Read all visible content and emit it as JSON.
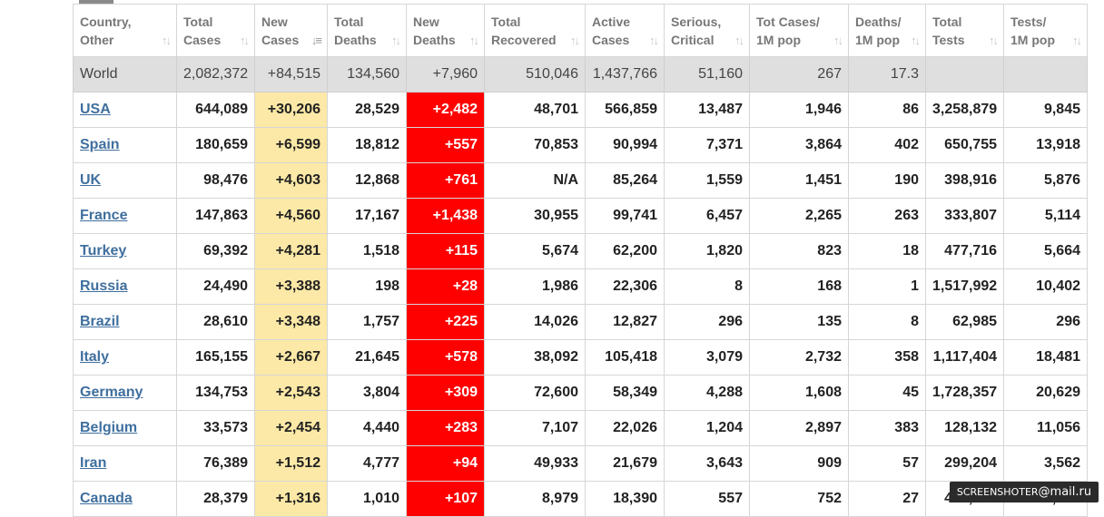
{
  "columns": [
    {
      "key": "country",
      "label": "Country,\nOther"
    },
    {
      "key": "total_cases",
      "label": "Total\nCases"
    },
    {
      "key": "new_cases",
      "label": "New\nCases",
      "sorted": true
    },
    {
      "key": "total_deaths",
      "label": "Total\nDeaths"
    },
    {
      "key": "new_deaths",
      "label": "New\nDeaths"
    },
    {
      "key": "total_recovered",
      "label": "Total\nRecovered"
    },
    {
      "key": "active_cases",
      "label": "Active\nCases"
    },
    {
      "key": "serious_critical",
      "label": "Serious,\nCritical"
    },
    {
      "key": "tot_cases_1m",
      "label": "Tot Cases/\n1M pop"
    },
    {
      "key": "deaths_1m",
      "label": "Deaths/\n1M pop"
    },
    {
      "key": "total_tests",
      "label": "Total\nTests"
    },
    {
      "key": "tests_1m",
      "label": "Tests/\n1M pop"
    }
  ],
  "world": [
    "World",
    "2,082,372",
    "+84,515",
    "134,560",
    "+7,960",
    "510,046",
    "1,437,766",
    "51,160",
    "267",
    "17.3",
    "",
    ""
  ],
  "rows": [
    [
      "USA",
      "644,089",
      "+30,206",
      "28,529",
      "+2,482",
      "48,701",
      "566,859",
      "13,487",
      "1,946",
      "86",
      "3,258,879",
      "9,845"
    ],
    [
      "Spain",
      "180,659",
      "+6,599",
      "18,812",
      "+557",
      "70,853",
      "90,994",
      "7,371",
      "3,864",
      "402",
      "650,755",
      "13,918"
    ],
    [
      "UK",
      "98,476",
      "+4,603",
      "12,868",
      "+761",
      "N/A",
      "85,264",
      "1,559",
      "1,451",
      "190",
      "398,916",
      "5,876"
    ],
    [
      "France",
      "147,863",
      "+4,560",
      "17,167",
      "+1,438",
      "30,955",
      "99,741",
      "6,457",
      "2,265",
      "263",
      "333,807",
      "5,114"
    ],
    [
      "Turkey",
      "69,392",
      "+4,281",
      "1,518",
      "+115",
      "5,674",
      "62,200",
      "1,820",
      "823",
      "18",
      "477,716",
      "5,664"
    ],
    [
      "Russia",
      "24,490",
      "+3,388",
      "198",
      "+28",
      "1,986",
      "22,306",
      "8",
      "168",
      "1",
      "1,517,992",
      "10,402"
    ],
    [
      "Brazil",
      "28,610",
      "+3,348",
      "1,757",
      "+225",
      "14,026",
      "12,827",
      "296",
      "135",
      "8",
      "62,985",
      "296"
    ],
    [
      "Italy",
      "165,155",
      "+2,667",
      "21,645",
      "+578",
      "38,092",
      "105,418",
      "3,079",
      "2,732",
      "358",
      "1,117,404",
      "18,481"
    ],
    [
      "Germany",
      "134,753",
      "+2,543",
      "3,804",
      "+309",
      "72,600",
      "58,349",
      "4,288",
      "1,608",
      "45",
      "1,728,357",
      "20,629"
    ],
    [
      "Belgium",
      "33,573",
      "+2,454",
      "4,440",
      "+283",
      "7,107",
      "22,026",
      "1,204",
      "2,897",
      "383",
      "128,132",
      "11,056"
    ],
    [
      "Iran",
      "76,389",
      "+1,512",
      "4,777",
      "+94",
      "49,933",
      "21,679",
      "3,643",
      "909",
      "57",
      "299,204",
      "3,562"
    ],
    [
      "Canada",
      "28,379",
      "+1,316",
      "1,010",
      "+107",
      "8,979",
      "18,390",
      "557",
      "752",
      "27",
      "407,780",
      "12,050"
    ]
  ],
  "sort_icon": "sort-arrows-icon",
  "watermark": {
    "prefix": "SCREENSHOTER",
    "at": "@",
    "suffix": "mail.ru"
  },
  "colors": {
    "new_cases_bg": "#fce9a7",
    "new_deaths_bg": "#ff0000",
    "world_bg": "#dfdfdf",
    "link": "#3f6f9e"
  }
}
